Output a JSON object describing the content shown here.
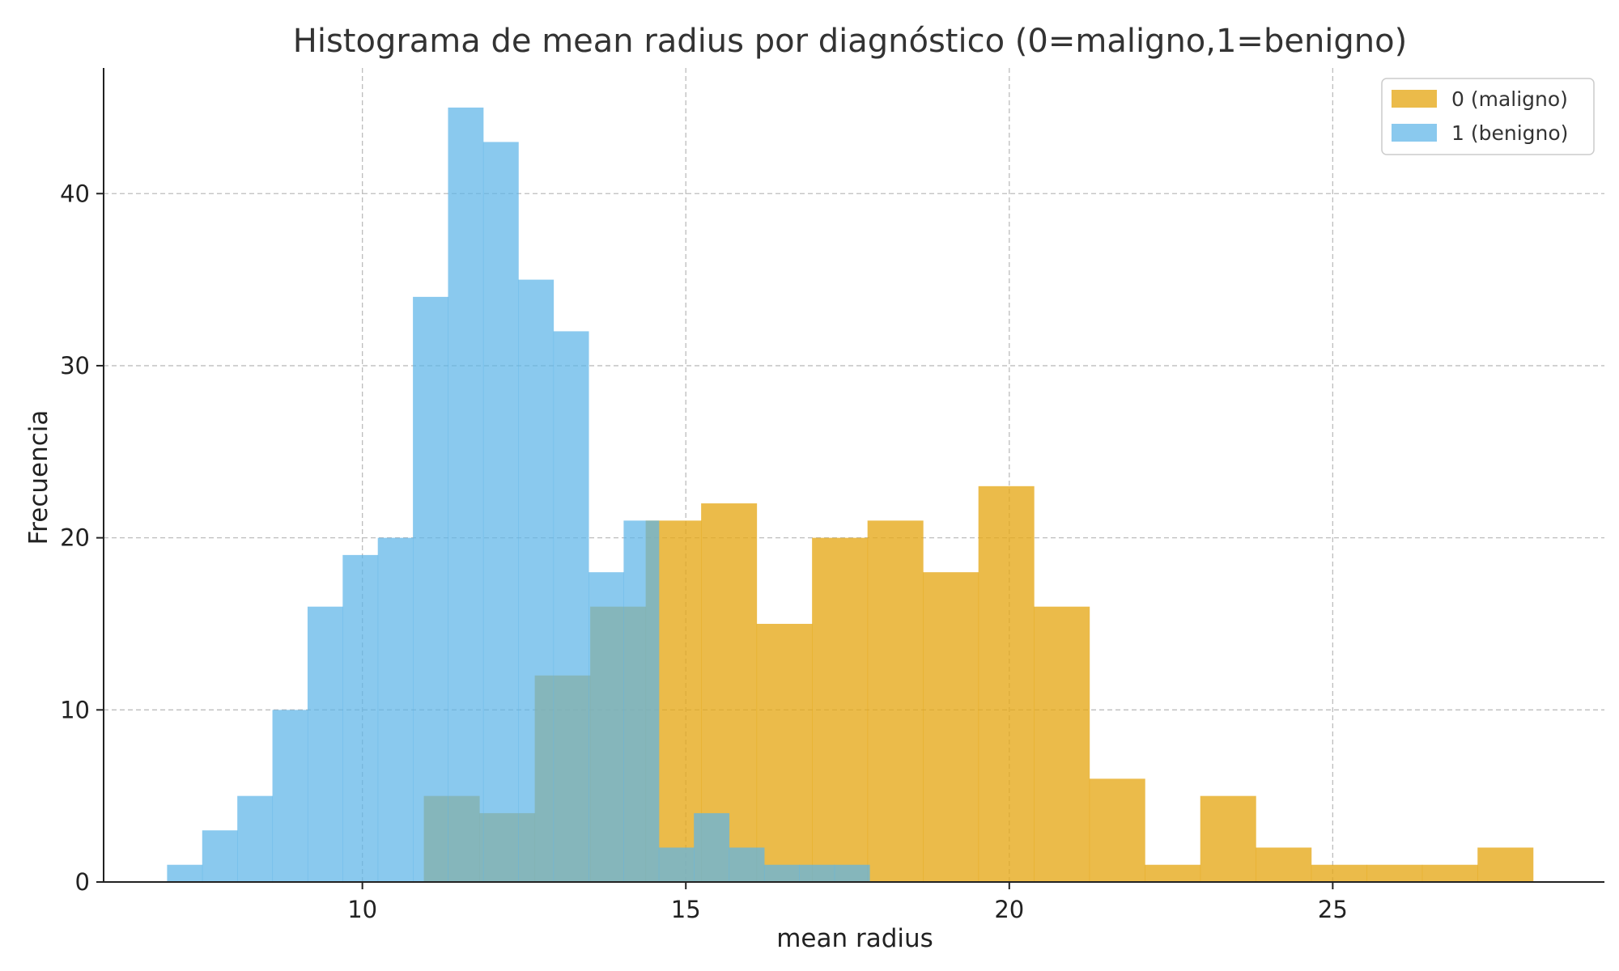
{
  "chart_data": {
    "type": "histogram",
    "title": "Histograma de mean radius por diagnóstico (0=maligno,1=benigno)",
    "xlabel": "mean radius",
    "ylabel": "Frecuencia",
    "xlim": [
      6.0,
      29.2
    ],
    "ylim": [
      0,
      47.3
    ],
    "xticks": [
      10,
      15,
      20,
      25
    ],
    "yticks": [
      0,
      10,
      20,
      30,
      40
    ],
    "grid": true,
    "legend_position": "top-right",
    "series": [
      {
        "name": "0 (maligno)",
        "color": "#E6A817",
        "opacity": 0.78,
        "bin_start": 10.95,
        "bin_width": 0.8573,
        "values": [
          5,
          4,
          12,
          16,
          21,
          22,
          15,
          20,
          21,
          18,
          23,
          16,
          6,
          1,
          5,
          2,
          1,
          1,
          1,
          2
        ]
      },
      {
        "name": "1 (benigno)",
        "color": "#5DB4E8",
        "opacity": 0.72,
        "bin_start": 6.981,
        "bin_width": 0.5429,
        "values": [
          1,
          3,
          5,
          10,
          16,
          19,
          20,
          34,
          45,
          43,
          35,
          32,
          18,
          21,
          2,
          4,
          2,
          1,
          1,
          1
        ]
      }
    ]
  }
}
